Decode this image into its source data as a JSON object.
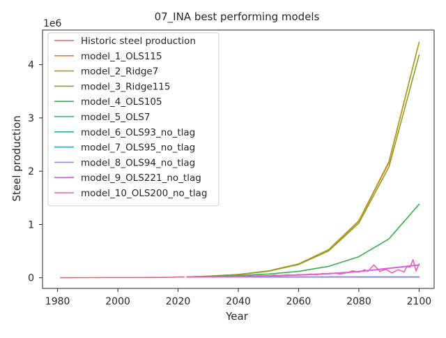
{
  "chart_data": {
    "type": "line",
    "title": "07_INA best performing models",
    "xlabel": "Year",
    "ylabel": "Steel production",
    "y_offset_label": "1e6",
    "y_scale_factor": 1000000,
    "xlim": [
      1975,
      2105
    ],
    "ylim": [
      -200000,
      4650000
    ],
    "x_ticks": [
      1980,
      2000,
      2020,
      2040,
      2060,
      2080,
      2100
    ],
    "y_ticks": [
      0,
      1,
      2,
      3,
      4
    ],
    "grid": false,
    "legend_position": "top-left",
    "series": [
      {
        "name": "Historic steel production",
        "color": "#e8636b",
        "points": [
          [
            1981,
            2000
          ],
          [
            1985,
            2500
          ],
          [
            1990,
            3000
          ],
          [
            1995,
            3500
          ],
          [
            2000,
            4000
          ],
          [
            2005,
            4500
          ],
          [
            2010,
            5500
          ],
          [
            2015,
            7000
          ],
          [
            2018,
            9000
          ],
          [
            2020,
            14000
          ],
          [
            2022,
            16000
          ]
        ]
      },
      {
        "name": "model_1_OLS115",
        "color": "#dc7b3a",
        "points": [
          [
            2023,
            15000
          ],
          [
            2030,
            30000
          ],
          [
            2040,
            62000
          ],
          [
            2050,
            128000
          ],
          [
            2060,
            260000
          ],
          [
            2070,
            530000
          ],
          [
            2080,
            1070000
          ],
          [
            2090,
            2180000
          ],
          [
            2100,
            4420000
          ]
        ]
      },
      {
        "name": "model_2_Ridge7",
        "color": "#b59a1e",
        "points": [
          [
            2023,
            15000
          ],
          [
            2030,
            30000
          ],
          [
            2040,
            62000
          ],
          [
            2050,
            128000
          ],
          [
            2060,
            260000
          ],
          [
            2070,
            525000
          ],
          [
            2080,
            1060000
          ],
          [
            2090,
            2160000
          ],
          [
            2100,
            4420000
          ]
        ]
      },
      {
        "name": "model_3_Ridge115",
        "color": "#8ba028",
        "points": [
          [
            2023,
            15000
          ],
          [
            2030,
            29000
          ],
          [
            2040,
            60000
          ],
          [
            2050,
            122000
          ],
          [
            2060,
            248000
          ],
          [
            2070,
            505000
          ],
          [
            2080,
            1025000
          ],
          [
            2090,
            2080000
          ],
          [
            2100,
            4180000
          ]
        ]
      },
      {
        "name": "model_4_OLS105",
        "color": "#3aae4c",
        "points": [
          [
            2023,
            15000
          ],
          [
            2030,
            25000
          ],
          [
            2040,
            42000
          ],
          [
            2050,
            70000
          ],
          [
            2060,
            120000
          ],
          [
            2070,
            215000
          ],
          [
            2080,
            395000
          ],
          [
            2090,
            730000
          ],
          [
            2100,
            1380000
          ]
        ]
      },
      {
        "name": "model_5_OLS7",
        "color": "#2eaf80",
        "points": [
          [
            2023,
            14000
          ],
          [
            2040,
            14500
          ],
          [
            2060,
            15000
          ],
          [
            2080,
            15500
          ],
          [
            2100,
            16000
          ]
        ]
      },
      {
        "name": "model_6_OLS93_no_tlag",
        "color": "#24aaa0",
        "points": [
          [
            2023,
            14000
          ],
          [
            2040,
            14000
          ],
          [
            2060,
            14000
          ],
          [
            2080,
            14000
          ],
          [
            2100,
            14000
          ]
        ]
      },
      {
        "name": "model_7_OLS95_no_tlag",
        "color": "#2c9fc0",
        "points": [
          [
            2023,
            14000
          ],
          [
            2040,
            13000
          ],
          [
            2060,
            12500
          ],
          [
            2080,
            12000
          ],
          [
            2100,
            12000
          ]
        ]
      },
      {
        "name": "model_8_OLS94_no_tlag",
        "color": "#8c8fe2",
        "points": [
          [
            2023,
            13000
          ],
          [
            2040,
            13000
          ],
          [
            2060,
            13500
          ],
          [
            2080,
            14000
          ],
          [
            2100,
            14000
          ]
        ]
      },
      {
        "name": "model_9_OLS221_no_tlag",
        "color": "#d260e0",
        "points": [
          [
            2023,
            14000
          ],
          [
            2028,
            16000
          ],
          [
            2032,
            18000
          ],
          [
            2036,
            21000
          ],
          [
            2040,
            24000
          ],
          [
            2044,
            28000
          ],
          [
            2048,
            33000
          ],
          [
            2052,
            38000
          ],
          [
            2056,
            45000
          ],
          [
            2060,
            52000
          ],
          [
            2064,
            62000
          ],
          [
            2068,
            72000
          ],
          [
            2072,
            85000
          ],
          [
            2076,
            100000
          ],
          [
            2080,
            118000
          ],
          [
            2084,
            140000
          ],
          [
            2088,
            165000
          ],
          [
            2092,
            190000
          ],
          [
            2096,
            215000
          ],
          [
            2100,
            240000
          ]
        ]
      },
      {
        "name": "model_10_OLS200_no_tlag",
        "color": "#e860b4",
        "points": [
          [
            2023,
            14000
          ],
          [
            2026,
            16000
          ],
          [
            2029,
            19000
          ],
          [
            2032,
            22000
          ],
          [
            2035,
            24000
          ],
          [
            2038,
            27000
          ],
          [
            2041,
            30000
          ],
          [
            2044,
            28000
          ],
          [
            2047,
            35000
          ],
          [
            2050,
            38000
          ],
          [
            2052,
            50000
          ],
          [
            2054,
            42000
          ],
          [
            2056,
            55000
          ],
          [
            2058,
            45000
          ],
          [
            2060,
            60000
          ],
          [
            2062,
            52000
          ],
          [
            2064,
            70000
          ],
          [
            2066,
            55000
          ],
          [
            2068,
            80000
          ],
          [
            2070,
            75000
          ],
          [
            2072,
            85000
          ],
          [
            2074,
            70000
          ],
          [
            2076,
            95000
          ],
          [
            2078,
            130000
          ],
          [
            2080,
            105000
          ],
          [
            2082,
            150000
          ],
          [
            2083,
            120000
          ],
          [
            2085,
            240000
          ],
          [
            2087,
            120000
          ],
          [
            2089,
            160000
          ],
          [
            2091,
            90000
          ],
          [
            2093,
            150000
          ],
          [
            2095,
            110000
          ],
          [
            2096,
            210000
          ],
          [
            2097,
            200000
          ],
          [
            2098,
            340000
          ],
          [
            2099,
            130000
          ],
          [
            2100,
            260000
          ]
        ]
      }
    ]
  }
}
